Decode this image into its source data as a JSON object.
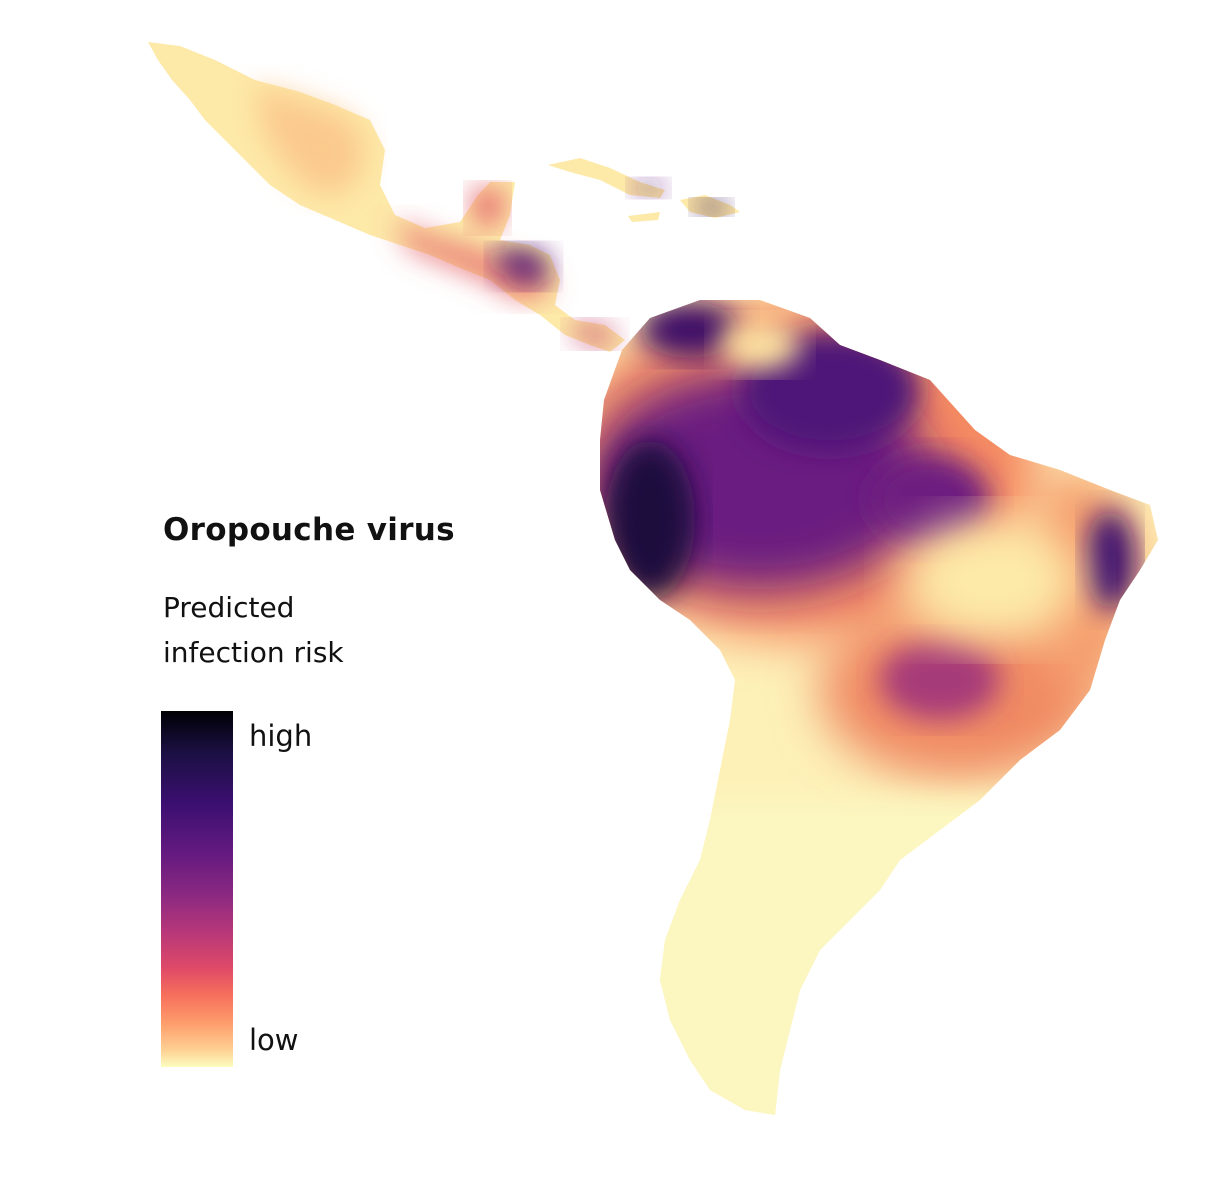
{
  "legend": {
    "title": "Oropouche virus",
    "subtitle_line1": "Predicted",
    "subtitle_line2": "infection risk",
    "high_label": "high",
    "low_label": "low"
  },
  "colors": {
    "scale": [
      "#000004",
      "#3b0f70",
      "#8c2981",
      "#de4968",
      "#fe9f6d",
      "#fcfdbf"
    ],
    "background": "#ffffff"
  }
}
